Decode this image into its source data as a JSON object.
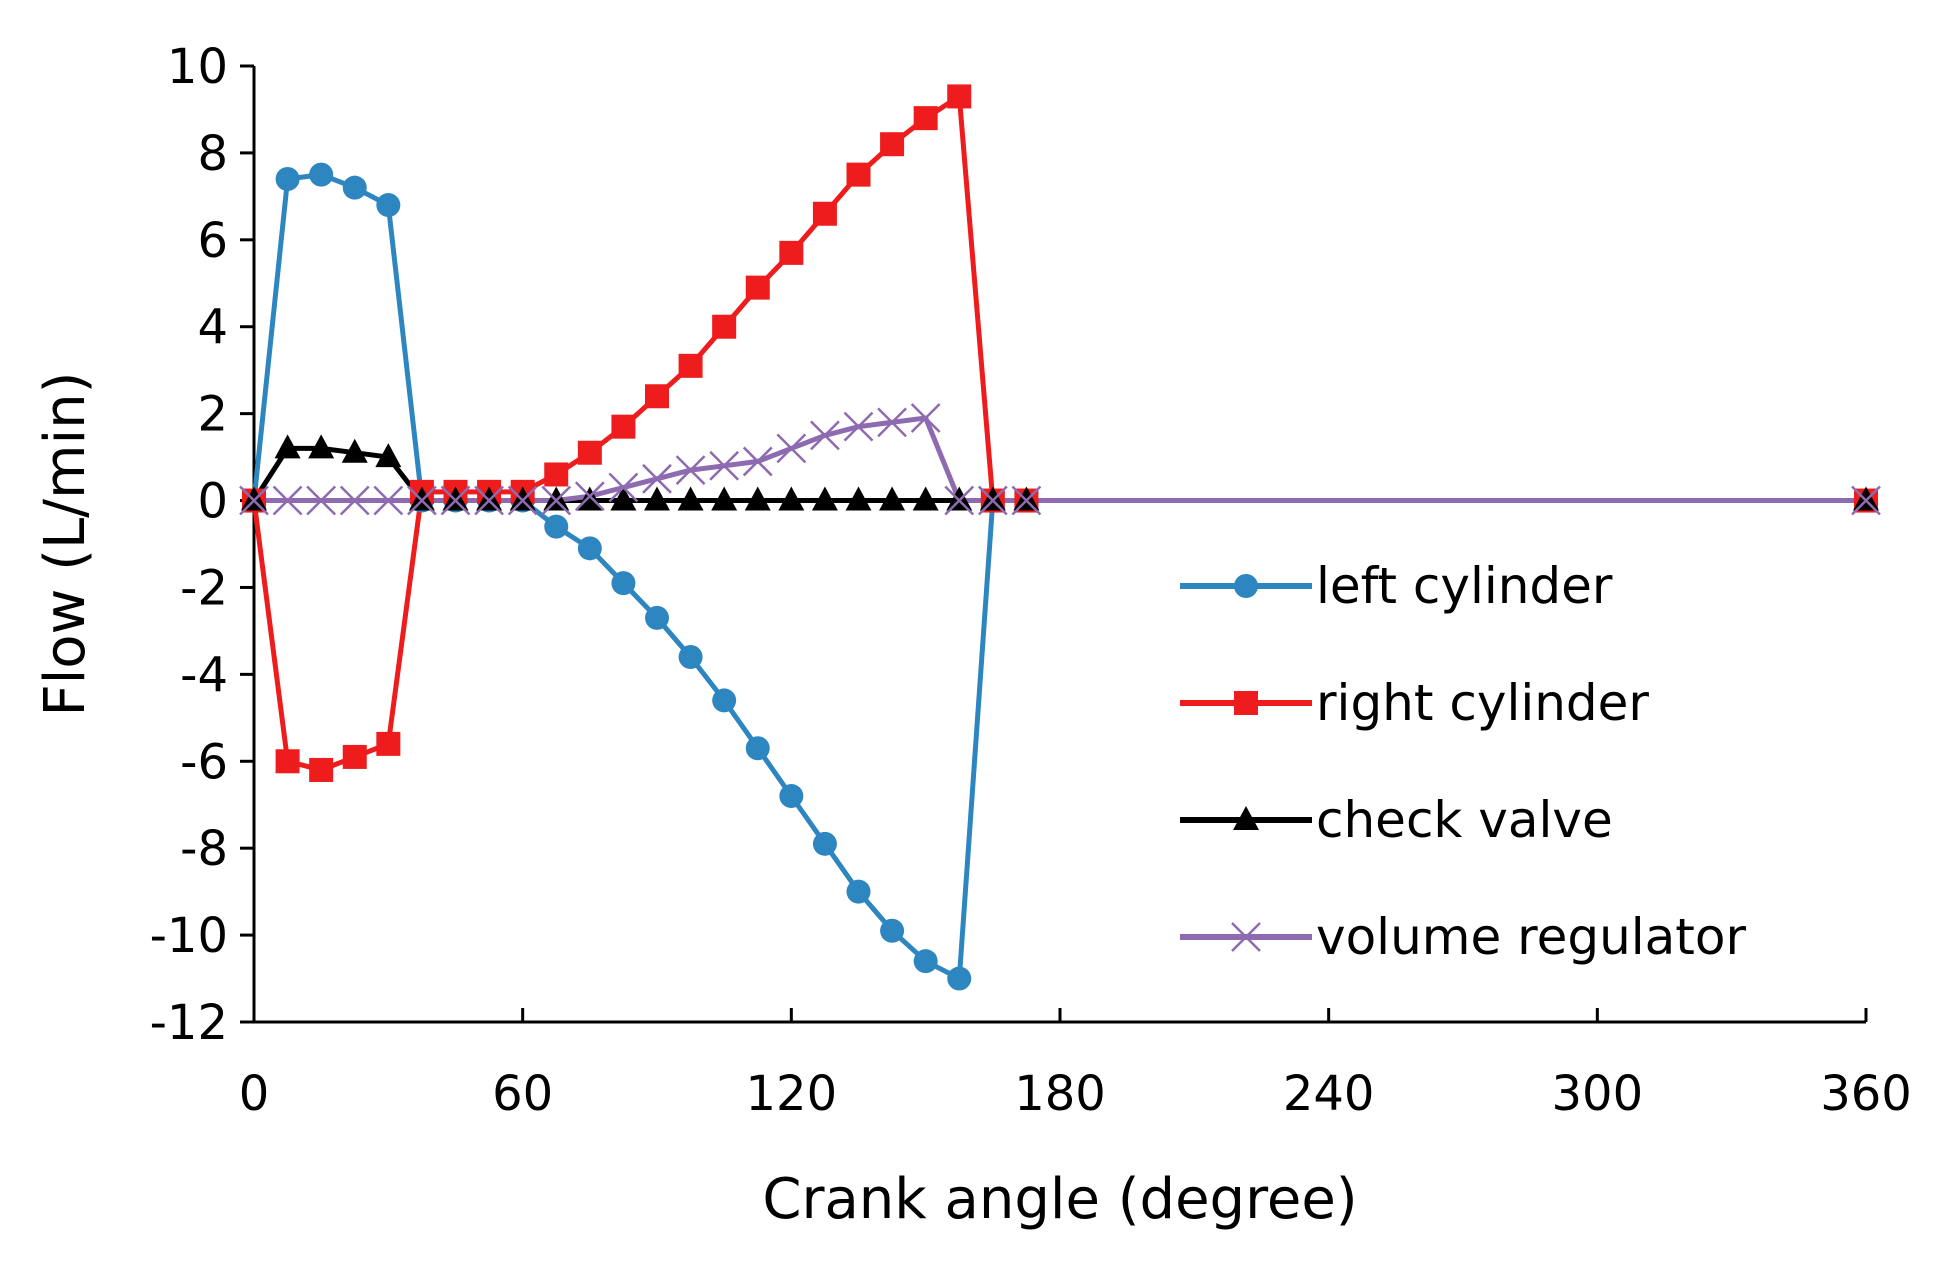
{
  "chart_data": {
    "type": "line",
    "title": "",
    "xlabel": "Crank angle (degree)",
    "ylabel": "Flow  (L/min)",
    "xlim": [
      0,
      360
    ],
    "ylim": [
      -12,
      10
    ],
    "xticks": [
      0,
      60,
      120,
      180,
      240,
      300,
      360
    ],
    "yticks": [
      10,
      8,
      6,
      4,
      2,
      0,
      -2,
      -4,
      -6,
      -8,
      -10,
      -12
    ],
    "legend_position": "right-center",
    "x": [
      0,
      7.5,
      15,
      22.5,
      30,
      37.5,
      45,
      52.5,
      60,
      67.5,
      75,
      82.5,
      90,
      97.5,
      105,
      112.5,
      120,
      127.5,
      135,
      142.5,
      150,
      157.5,
      165,
      172.5,
      360
    ],
    "series": [
      {
        "name": "left cylinder",
        "color": "#2e86c1",
        "marker": "circle",
        "values": [
          0,
          7.4,
          7.5,
          7.2,
          6.8,
          0,
          0,
          0,
          0,
          -0.6,
          -1.1,
          -1.9,
          -2.7,
          -3.6,
          -4.6,
          -5.7,
          -6.8,
          -7.9,
          -9.0,
          -9.9,
          -10.6,
          -11.0,
          0,
          0,
          0
        ]
      },
      {
        "name": "right cylinder",
        "color": "#ee1c1c",
        "marker": "square",
        "values": [
          0,
          -6.0,
          -6.2,
          -5.9,
          -5.6,
          0.2,
          0.2,
          0.2,
          0.2,
          0.6,
          1.1,
          1.7,
          2.4,
          3.1,
          4.0,
          4.9,
          5.7,
          6.6,
          7.5,
          8.2,
          8.8,
          9.3,
          0,
          0,
          0
        ]
      },
      {
        "name": "check valve",
        "color": "#000000",
        "marker": "triangle",
        "values": [
          0,
          1.2,
          1.2,
          1.1,
          1.0,
          0,
          0,
          0,
          0,
          0,
          0,
          0,
          0,
          0,
          0,
          0,
          0,
          0,
          0,
          0,
          0,
          0,
          0,
          0,
          0
        ]
      },
      {
        "name": "volume regulator",
        "color": "#8e6bb0",
        "marker": "x",
        "values": [
          0,
          0,
          0,
          0,
          0,
          0,
          0,
          0,
          0,
          0,
          0.1,
          0.3,
          0.5,
          0.7,
          0.8,
          0.9,
          1.2,
          1.5,
          1.7,
          1.8,
          1.9,
          0,
          0,
          0,
          0
        ]
      }
    ]
  }
}
